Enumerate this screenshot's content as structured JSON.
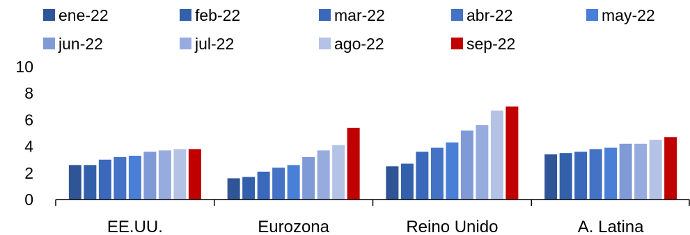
{
  "chart_data": {
    "type": "bar",
    "title": "",
    "xlabel": "",
    "ylabel": "",
    "categories": [
      "EE.UU.",
      "Eurozona",
      "Reino Unido",
      "A. Latina"
    ],
    "ylim": [
      0,
      10
    ],
    "yticks": [
      0,
      2,
      4,
      6,
      8,
      10
    ],
    "grid": false,
    "legend_position": "top",
    "series": [
      {
        "name": "ene-22",
        "color": "#2f5597",
        "values": [
          2.6,
          1.6,
          2.5,
          3.4
        ]
      },
      {
        "name": "feb-22",
        "color": "#3360ab",
        "values": [
          2.6,
          1.7,
          2.7,
          3.5
        ]
      },
      {
        "name": "mar-22",
        "color": "#3a68bb",
        "values": [
          3.0,
          2.1,
          3.6,
          3.6
        ]
      },
      {
        "name": "abr-22",
        "color": "#4472c4",
        "values": [
          3.2,
          2.4,
          3.9,
          3.8
        ]
      },
      {
        "name": "may-22",
        "color": "#4a7fd8",
        "values": [
          3.3,
          2.6,
          4.3,
          3.9
        ]
      },
      {
        "name": "jun-22",
        "color": "#7f9ad6",
        "values": [
          3.6,
          3.2,
          5.2,
          4.2
        ]
      },
      {
        "name": "jul-22",
        "color": "#97acde",
        "values": [
          3.7,
          3.7,
          5.6,
          4.2
        ]
      },
      {
        "name": "ago-22",
        "color": "#b4c2e6",
        "values": [
          3.8,
          4.1,
          6.7,
          4.5
        ]
      },
      {
        "name": "sep-22",
        "color": "#c00000",
        "values": [
          3.8,
          5.4,
          7.0,
          4.7
        ]
      }
    ]
  }
}
